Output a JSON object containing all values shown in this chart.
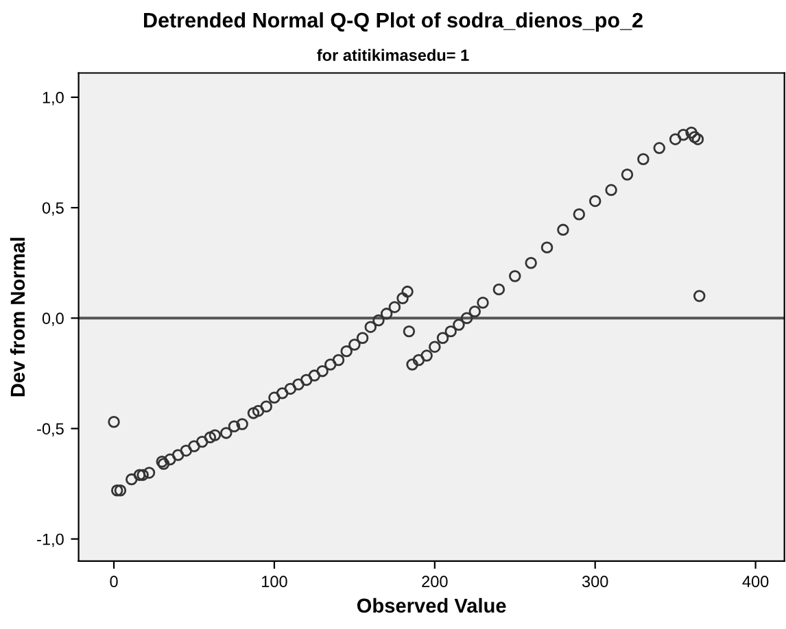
{
  "chart_data": {
    "type": "scatter",
    "title": "Detrended Normal Q-Q Plot of sodra_dienos_po_2",
    "subtitle": "for atitikimasedu= 1",
    "xlabel": "Observed Value",
    "ylabel": "Dev from Normal",
    "marker": "circle",
    "grid": false,
    "legend": false,
    "xlim": [
      -22,
      418
    ],
    "xticks": [
      0,
      100,
      200,
      300,
      400
    ],
    "ylim": [
      -1.1,
      1.11
    ],
    "yticks": [
      {
        "value": -1.0,
        "label": "-1,0"
      },
      {
        "value": -0.5,
        "label": "-0,5"
      },
      {
        "value": 0.0,
        "label": "0,0"
      },
      {
        "value": 0.5,
        "label": "0,5"
      },
      {
        "value": 1.0,
        "label": "1,0"
      }
    ],
    "ref_lines": [
      {
        "axis": "y",
        "value": 0,
        "color": "#555555"
      }
    ],
    "series": [
      {
        "color": "#333333",
        "x": [
          0,
          2,
          4,
          11,
          16,
          18,
          22,
          30,
          31,
          35,
          40,
          45,
          50,
          55,
          60,
          63,
          70,
          75,
          80,
          87,
          90,
          95,
          100,
          105,
          110,
          115,
          120,
          125,
          130,
          135,
          140,
          145,
          150,
          155,
          160,
          165,
          170,
          175,
          180,
          183,
          184,
          186,
          190,
          195,
          200,
          205,
          210,
          215,
          220,
          225,
          230,
          240,
          250,
          260,
          270,
          280,
          290,
          300,
          310,
          320,
          330,
          340,
          350,
          355,
          360,
          362,
          364,
          365
        ],
        "values": [
          -0.47,
          -0.78,
          -0.78,
          -0.73,
          -0.71,
          -0.71,
          -0.7,
          -0.65,
          -0.66,
          -0.64,
          -0.62,
          -0.6,
          -0.58,
          -0.56,
          -0.54,
          -0.53,
          -0.52,
          -0.49,
          -0.48,
          -0.43,
          -0.42,
          -0.4,
          -0.36,
          -0.34,
          -0.32,
          -0.3,
          -0.28,
          -0.26,
          -0.24,
          -0.21,
          -0.19,
          -0.15,
          -0.12,
          -0.09,
          -0.04,
          -0.01,
          0.02,
          0.05,
          0.09,
          0.12,
          -0.06,
          -0.21,
          -0.19,
          -0.17,
          -0.13,
          -0.09,
          -0.06,
          -0.03,
          0.0,
          0.03,
          0.07,
          0.13,
          0.19,
          0.25,
          0.32,
          0.4,
          0.47,
          0.53,
          0.58,
          0.65,
          0.72,
          0.77,
          0.81,
          0.83,
          0.84,
          0.82,
          0.81,
          0.1
        ]
      }
    ]
  }
}
